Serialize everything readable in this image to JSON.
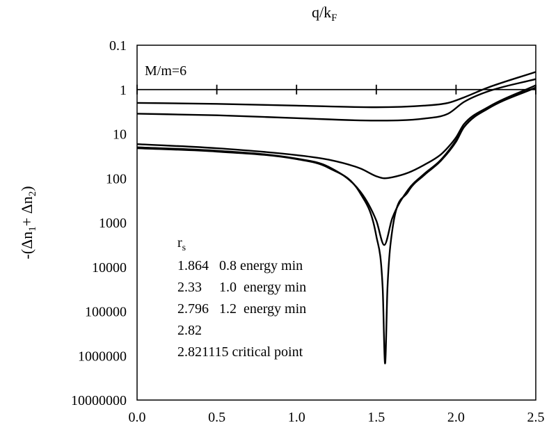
{
  "chart_data": {
    "type": "line",
    "title": "",
    "xlabel": "q/k",
    "xlabel_sub": "F",
    "ylabel_parts": [
      "-(Δn",
      "1",
      "+ Δn",
      "2",
      ")"
    ],
    "xlim": [
      0.0,
      2.5
    ],
    "ylim_log10": [
      -1,
      7
    ],
    "y_axis_reversed": true,
    "x_axis_position": "top",
    "x_tick_labels": [
      "0.0",
      "0.5",
      "1.0",
      "1.5",
      "2.0",
      "2.5"
    ],
    "y_tick_labels": [
      "0.1",
      "1",
      "10",
      "100",
      "1000",
      "10000",
      "100000",
      "1000000",
      "10000000"
    ],
    "annotation_mass": "M/m=6",
    "legend_header": "r",
    "legend_header_sub": "s",
    "legend_entries": [
      "1.864   0.8 energy min",
      "2.33     1.0  energy min",
      "2.796   1.2  energy min",
      "2.82",
      "2.821115 critical point"
    ],
    "series": [
      {
        "name": "1.864",
        "x": [
          0.0,
          0.5,
          1.0,
          1.5,
          1.8,
          1.95,
          2.05,
          2.2,
          2.5
        ],
        "y": [
          2.0,
          2.1,
          2.3,
          2.5,
          2.3,
          2.0,
          1.5,
          0.9,
          0.4
        ]
      },
      {
        "name": "2.33",
        "x": [
          0.0,
          0.5,
          1.0,
          1.5,
          1.8,
          1.95,
          2.05,
          2.2,
          2.5
        ],
        "y": [
          3.5,
          3.8,
          4.4,
          5.0,
          4.5,
          3.5,
          1.9,
          1.1,
          0.58
        ]
      },
      {
        "name": "2.796",
        "x": [
          0.0,
          0.5,
          1.0,
          1.2,
          1.4,
          1.5,
          1.55,
          1.6,
          1.7,
          1.8,
          1.9,
          1.95,
          2.0,
          2.05,
          2.2,
          2.5
        ],
        "y": [
          17,
          21,
          30,
          38,
          60,
          90,
          100,
          95,
          75,
          50,
          30,
          20,
          12,
          6,
          2.5,
          0.8
        ]
      },
      {
        "name": "2.82",
        "x": [
          0.0,
          0.5,
          1.0,
          1.2,
          1.4,
          1.5,
          1.55,
          1.6,
          1.7,
          1.8,
          1.9,
          2.0,
          2.05,
          2.2,
          2.5
        ],
        "y": [
          20,
          24,
          36,
          55,
          200,
          900,
          3200,
          800,
          180,
          80,
          40,
          14,
          7,
          2.6,
          0.9
        ]
      },
      {
        "name": "2.821115",
        "x": [
          0.0,
          0.5,
          1.0,
          1.2,
          1.4,
          1.5,
          1.54,
          1.555,
          1.57,
          1.6,
          1.7,
          1.8,
          1.9,
          2.0,
          2.05,
          2.2,
          2.5
        ],
        "y": [
          21,
          25,
          37,
          58,
          220,
          2000,
          30000,
          1500000,
          30000,
          1500,
          200,
          85,
          42,
          15,
          7,
          2.7,
          0.9
        ]
      }
    ],
    "grid": false,
    "colors": {
      "line": "#000000",
      "background": "#ffffff"
    }
  }
}
